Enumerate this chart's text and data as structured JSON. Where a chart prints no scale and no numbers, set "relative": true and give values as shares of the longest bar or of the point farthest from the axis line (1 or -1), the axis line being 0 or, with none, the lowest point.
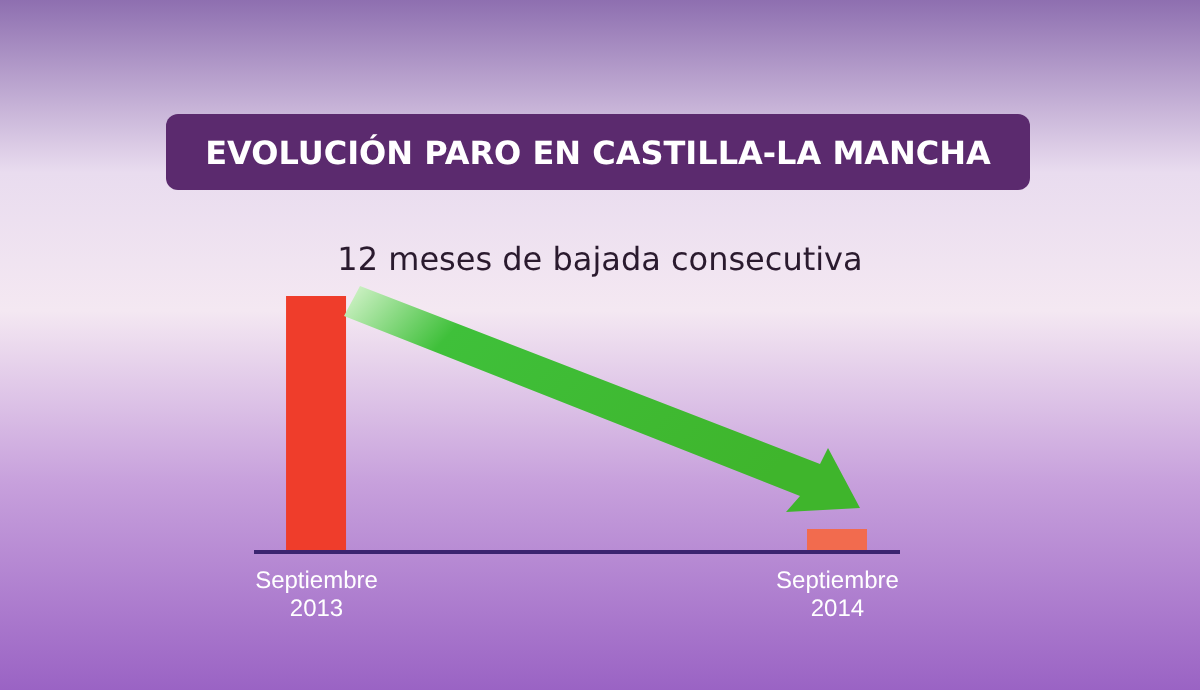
{
  "chart_data": {
    "type": "bar",
    "title": "EVOLUCIÓN PARO EN CASTILLA-LA MANCHA",
    "subtitle": "12 meses de bajada consecutiva",
    "categories": [
      "Septiembre 2013",
      "Septiembre 2014"
    ],
    "values": [
      1,
      0.09
    ],
    "colors": [
      "#ef3d2b",
      "#f26b4e"
    ],
    "relative": true
  }
}
